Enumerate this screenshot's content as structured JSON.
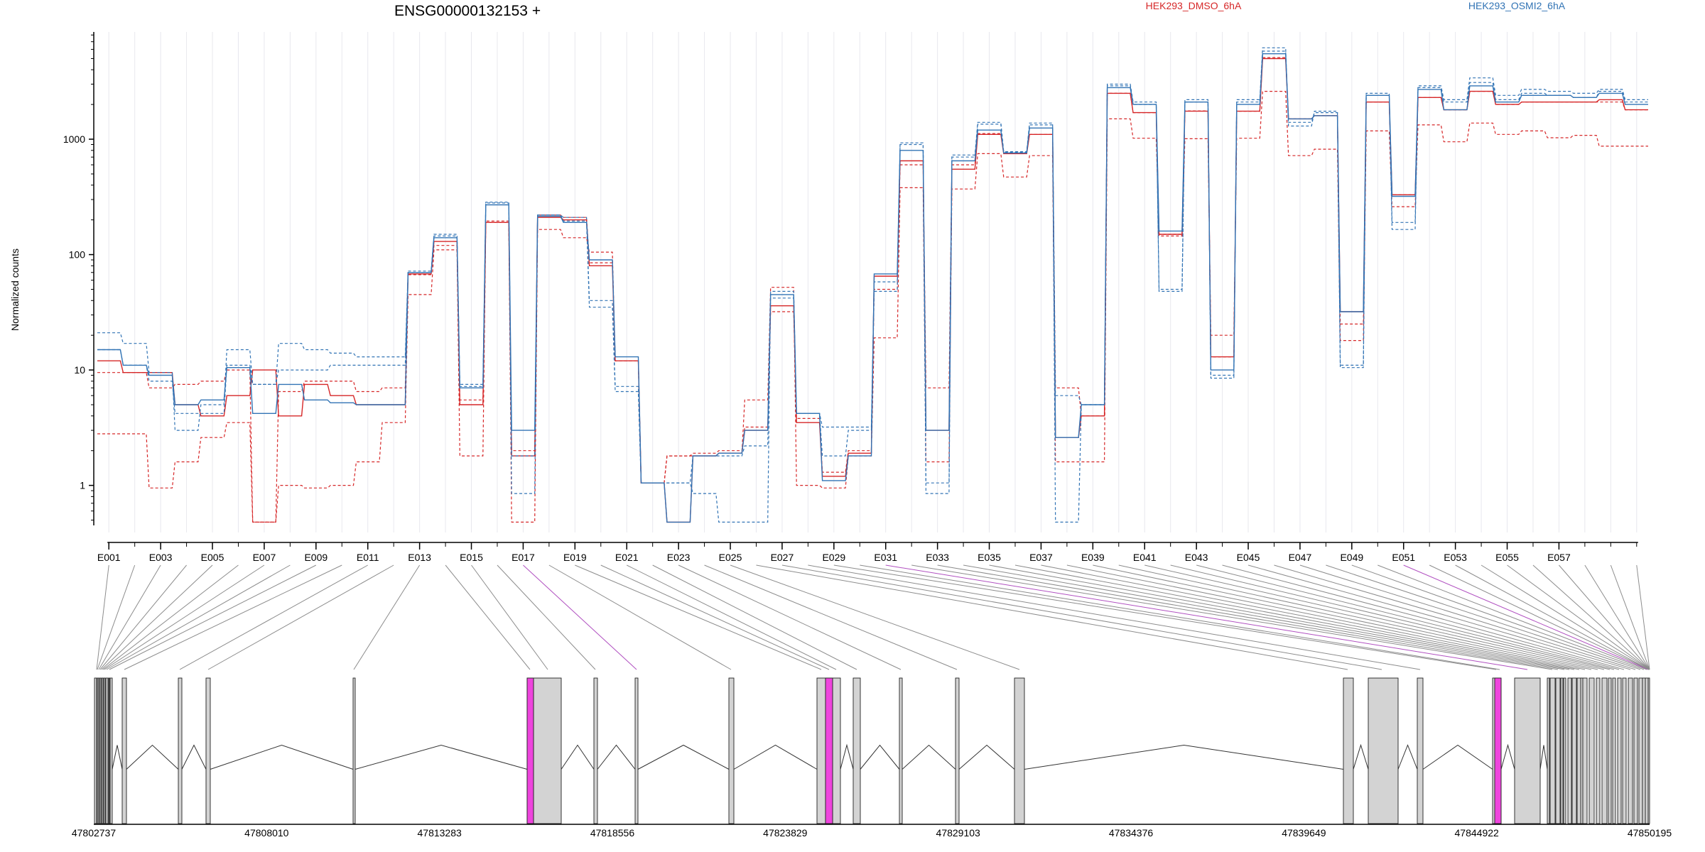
{
  "chart_data": {
    "type": "line",
    "title": "ENSG00000132153 +",
    "ylabel": "Normalized counts",
    "yscale": "log",
    "ylim": [
      0.45,
      8500
    ],
    "y_ticks": [
      {
        "value": 1,
        "label": "1"
      },
      {
        "value": 10,
        "label": "10"
      },
      {
        "value": 100,
        "label": "100"
      },
      {
        "value": 1000,
        "label": "1000"
      }
    ],
    "legend_placement": "top",
    "exon_labels": [
      "E001",
      "E003",
      "E005",
      "E007",
      "E009",
      "E011",
      "E013",
      "E015",
      "E017",
      "E019",
      "E021",
      "E023",
      "E025",
      "E027",
      "E029",
      "E031",
      "E033",
      "E035",
      "E037",
      "E039",
      "E041",
      "E043",
      "E045",
      "E047",
      "E049",
      "E051",
      "E053",
      "E055",
      "E057"
    ],
    "series": [
      {
        "name": "HEK293_DMSO_6hA",
        "color": "#d62728",
        "style": "solid",
        "values": [
          12,
          9.5,
          9.5,
          5,
          4,
          6,
          10,
          4,
          7.5,
          6,
          5,
          5,
          68,
          130,
          5,
          190,
          1.8,
          210,
          200,
          80,
          12,
          1.05,
          0.48,
          1.8,
          1.9,
          3,
          36,
          3.5,
          1.2,
          1.9,
          65,
          650,
          3,
          550,
          1100,
          750,
          1100,
          2.6,
          4,
          2500,
          1700,
          150,
          1750,
          13,
          1750,
          5000,
          1500,
          1600,
          32,
          2100,
          330,
          2300,
          1800,
          2600,
          2000,
          2100,
          2100,
          2100,
          2200,
          1800
        ]
      },
      {
        "name": "HEK293_DMSO_6hA",
        "color": "#d62728",
        "style": "dashed",
        "values": [
          2.8,
          2.8,
          0.95,
          1.6,
          2.6,
          3.5,
          0.48,
          1,
          0.95,
          1,
          1.6,
          3.5,
          45,
          110,
          1.8,
          190,
          0.48,
          165,
          140,
          105,
          12,
          1.05,
          1.8,
          1.8,
          1.9,
          5.5,
          52,
          1,
          0.95,
          1.8,
          19,
          380,
          1.6,
          370,
          750,
          470,
          720,
          1.6,
          1.6,
          1500,
          1020,
          150,
          1010,
          20,
          1020,
          2600,
          720,
          820,
          18,
          1180,
          260,
          1330,
          950,
          1380,
          1100,
          1180,
          1030,
          1080,
          870,
          870
        ]
      },
      {
        "name": "HEK293_DMSO_6hA",
        "color": "#d62728",
        "style": "dashed",
        "values": [
          9.5,
          9.5,
          7,
          7.5,
          8,
          10,
          0.48,
          6.5,
          8,
          8,
          6.5,
          7,
          67,
          120,
          5.5,
          195,
          2,
          220,
          210,
          85,
          12,
          1.05,
          1.8,
          1.9,
          2,
          3.2,
          32,
          3.8,
          1.3,
          2,
          50,
          600,
          7,
          600,
          1120,
          760,
          1100,
          7,
          4,
          2500,
          1700,
          145,
          1760,
          13,
          1750,
          5100,
          1500,
          1600,
          25,
          2100,
          330,
          2300,
          1800,
          2600,
          2000,
          2100,
          2100,
          2100,
          2100,
          1800
        ]
      },
      {
        "name": "HEK293_OSMI2_6hA",
        "color": "#3274b5",
        "style": "solid",
        "values": [
          15,
          11,
          9,
          5,
          5.5,
          10.5,
          4.2,
          7.5,
          5.5,
          5.2,
          5,
          5,
          70,
          140,
          7,
          270,
          3,
          215,
          190,
          90,
          13,
          1.05,
          0.48,
          1.8,
          1.9,
          3,
          45,
          4.2,
          1.1,
          1.8,
          68,
          800,
          3,
          650,
          1200,
          760,
          1250,
          2.6,
          5,
          2800,
          2000,
          160,
          2100,
          10,
          2000,
          5500,
          1500,
          1600,
          32,
          2400,
          320,
          2700,
          1800,
          2900,
          2100,
          2400,
          2400,
          2300,
          2500,
          2000
        ]
      },
      {
        "name": "HEK293_OSMI2_6hA",
        "color": "#3274b5",
        "style": "dashed",
        "values": [
          21,
          17,
          9.5,
          3,
          5,
          15,
          7.5,
          17,
          15,
          14,
          13,
          13,
          72,
          150,
          7.5,
          285,
          0.85,
          220,
          210,
          40,
          7.2,
          1.05,
          1.05,
          0.85,
          0.48,
          0.48,
          48,
          4.2,
          3.2,
          3.2,
          58,
          930,
          0.85,
          730,
          1400,
          780,
          1380,
          0.48,
          5,
          3000,
          2100,
          48,
          2200,
          8.5,
          2200,
          6200,
          1300,
          1750,
          11,
          2500,
          165,
          2900,
          2200,
          3400,
          2400,
          2700,
          2600,
          2500,
          2700,
          2200
        ]
      },
      {
        "name": "HEK293_OSMI2_6hA",
        "color": "#3274b5",
        "style": "dashed",
        "values": [
          15,
          11,
          8,
          4.2,
          4.2,
          11,
          7.5,
          10,
          10,
          11,
          11,
          11,
          70,
          145,
          7.2,
          280,
          1.8,
          220,
          195,
          35,
          6.5,
          1.05,
          1.05,
          1.8,
          1.8,
          2.2,
          42,
          4.2,
          1.8,
          3,
          48,
          900,
          1.05,
          700,
          1350,
          770,
          1330,
          6,
          5,
          2900,
          2000,
          50,
          2100,
          9,
          2100,
          5800,
          1400,
          1700,
          10.5,
          2400,
          190,
          2800,
          2100,
          3100,
          2200,
          2500,
          2400,
          2300,
          2600,
          2100
        ]
      }
    ],
    "exon_colors": {
      "default": "#d3d3d3",
      "highlight": "#ee44dd"
    },
    "highlighted_exons": [
      16,
      30,
      50
    ],
    "genomic_ticks": [
      {
        "value": 47802737,
        "label": "47802737"
      },
      {
        "value": 47808010,
        "label": "47808010"
      },
      {
        "value": 47813283,
        "label": "47813283"
      },
      {
        "value": 47818556,
        "label": "47818556"
      },
      {
        "value": 47823829,
        "label": "47823829"
      },
      {
        "value": 47829103,
        "label": "47829103"
      },
      {
        "value": 47834376,
        "label": "47834376"
      },
      {
        "value": 47839649,
        "label": "47839649"
      },
      {
        "value": 47844922,
        "label": "47844922"
      },
      {
        "value": 47850195,
        "label": "47850195"
      }
    ]
  }
}
